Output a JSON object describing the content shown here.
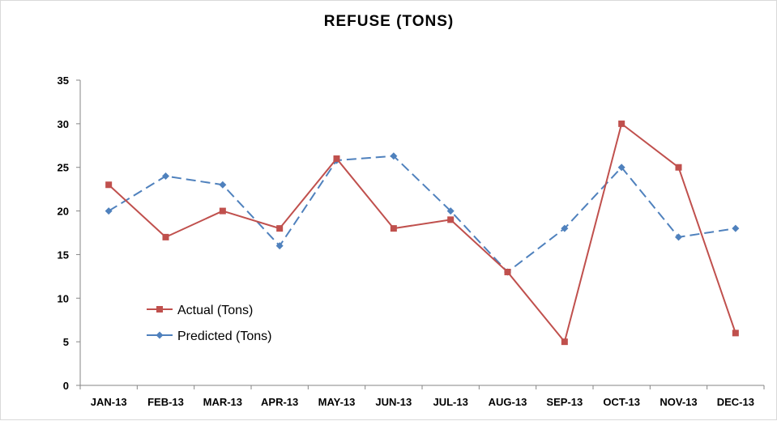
{
  "chart_data": {
    "type": "line",
    "title": "REFUSE (TONS)",
    "xlabel": "",
    "ylabel": "",
    "categories": [
      "JAN-13",
      "FEB-13",
      "MAR-13",
      "APR-13",
      "MAY-13",
      "JUN-13",
      "JUL-13",
      "AUG-13",
      "SEP-13",
      "OCT-13",
      "NOV-13",
      "DEC-13"
    ],
    "ylim": [
      0,
      35
    ],
    "yticks": [
      0,
      5,
      10,
      15,
      20,
      25,
      30,
      35
    ],
    "grid": false,
    "legend_position": "lower-left",
    "series": [
      {
        "name": "Actual (Tons)",
        "color": "#c0504d",
        "marker": "square",
        "line_style": "solid",
        "values": [
          23,
          17,
          20,
          18,
          26,
          18,
          19,
          13,
          5,
          30,
          25,
          6
        ]
      },
      {
        "name": "Predicted (Tons)",
        "color": "#4f81bd",
        "marker": "diamond",
        "line_style": "dashed",
        "values": [
          20,
          24,
          23,
          16,
          25.8,
          26.3,
          20,
          13,
          18,
          25,
          17,
          18
        ]
      }
    ]
  }
}
